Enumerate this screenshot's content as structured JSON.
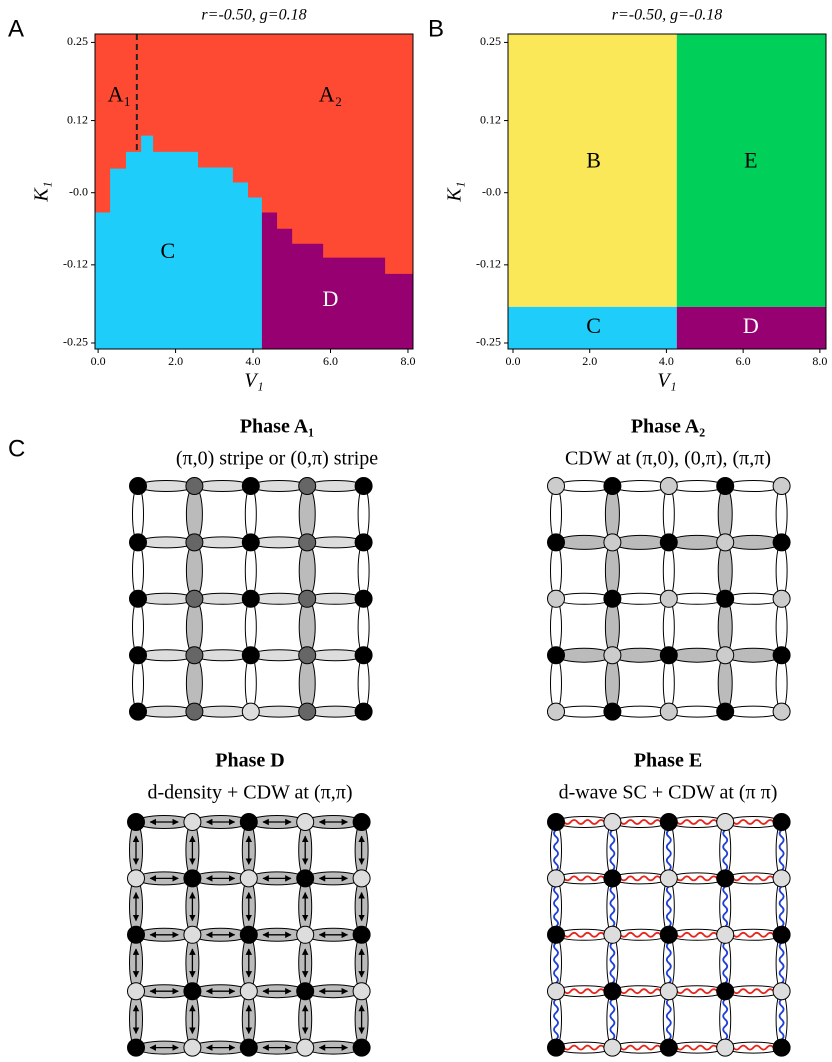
{
  "panel_labels": [
    "A",
    "B",
    "C"
  ],
  "chart_data": [
    {
      "type": "phase",
      "title": "r=-0.50, g=0.18",
      "xlabel": "V₁",
      "ylabel": "K₁",
      "xlim": [
        -0.08,
        8.13
      ],
      "ylim": [
        -0.26,
        0.264
      ],
      "xticks": [
        {
          "value": 0,
          "label": "0.0"
        },
        {
          "value": 2,
          "label": "2.0"
        },
        {
          "value": 4,
          "label": "4.0"
        },
        {
          "value": 6,
          "label": "6.0"
        },
        {
          "value": 8,
          "label": "8.0"
        }
      ],
      "yticks": [
        0.25,
        0.12,
        {
          "value": 0,
          "label": "-0.0"
        },
        -0.12,
        -0.25
      ],
      "background_color": "#ff4a33",
      "regions": [
        {
          "name": "C",
          "color": "#1fcdfb",
          "x": [
            -0.08,
            -0.08,
            0.31,
            0.31,
            0.72,
            0.72,
            1.11,
            1.11,
            1.42,
            1.42,
            2.58,
            2.58,
            3.48,
            3.48,
            3.87,
            3.87,
            4.23,
            4.23
          ],
          "y": [
            -0.26,
            -0.033,
            -0.033,
            0.04,
            0.04,
            0.068,
            0.068,
            0.095,
            0.095,
            0.068,
            0.068,
            0.042,
            0.042,
            0.017,
            0.017,
            -0.008,
            -0.008,
            -0.26
          ]
        },
        {
          "name": "D",
          "color": "#960070",
          "x": [
            4.23,
            4.23,
            4.62,
            4.62,
            5.01,
            5.01,
            5.81,
            5.81,
            7.41,
            7.41,
            8.13,
            8.13
          ],
          "y": [
            -0.26,
            -0.033,
            -0.033,
            -0.06,
            -0.06,
            -0.085,
            -0.085,
            -0.108,
            -0.108,
            -0.135,
            -0.135,
            -0.26
          ]
        }
      ],
      "region_labels": [
        "A₁",
        "A₂",
        "C",
        "D"
      ],
      "dashed_line": {
        "x": [
          1,
          1
        ],
        "y": [
          0.264,
          0.068
        ]
      }
    },
    {
      "type": "phase",
      "title": "r=-0.50, g=-0.18",
      "xlabel": "V₁",
      "ylabel": "K₁",
      "xlim": [
        -0.13,
        8.16
      ],
      "ylim": [
        -0.26,
        0.264
      ],
      "xticks": [
        {
          "value": 0,
          "label": "0.0"
        },
        {
          "value": 2,
          "label": "2.0"
        },
        {
          "value": 4,
          "label": "4.0"
        },
        {
          "value": 6,
          "label": "6.0"
        },
        {
          "value": 8,
          "label": "8.0"
        }
      ],
      "yticks": [
        0.25,
        0.12,
        {
          "value": 0,
          "label": "-0.0"
        },
        -0.12,
        -0.25
      ],
      "regions": [
        {
          "name": "B",
          "color": "#fbe858",
          "x": [
            -0.13,
            -0.13,
            4.27,
            4.27
          ],
          "y": [
            -0.19,
            0.264,
            0.264,
            -0.19
          ]
        },
        {
          "name": "E",
          "color": "#00d05a",
          "x": [
            4.27,
            4.27,
            8.16,
            8.16
          ],
          "y": [
            -0.19,
            0.264,
            0.264,
            -0.19
          ]
        },
        {
          "name": "C",
          "color": "#1fcdfb",
          "x": [
            -0.13,
            -0.13,
            4.27,
            4.27
          ],
          "y": [
            -0.26,
            -0.19,
            -0.19,
            -0.26
          ]
        },
        {
          "name": "D",
          "color": "#960070",
          "x": [
            4.27,
            4.27,
            8.16,
            8.16
          ],
          "y": [
            -0.26,
            -0.19,
            -0.19,
            -0.26
          ]
        }
      ],
      "region_labels": [
        "B",
        "E",
        "C",
        "D"
      ]
    }
  ],
  "lattices": [
    {
      "title": "Phase A₁",
      "subtitle": "(π,0) stripe or (0,π) stripe"
    },
    {
      "title": "Phase A₂",
      "subtitle": "CDW at (π,0), (0,π), (π,π)"
    },
    {
      "title": "Phase D",
      "subtitle": "d-density + CDW at (π,π)"
    },
    {
      "title": "Phase E",
      "subtitle": "d-wave SC + CDW at (π π)"
    }
  ]
}
